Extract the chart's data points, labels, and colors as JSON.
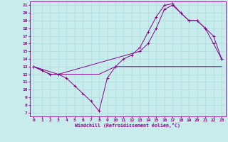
{
  "xlabel": "Windchill (Refroidissement éolien,°C)",
  "xlim": [
    -0.5,
    23.5
  ],
  "ylim": [
    6.5,
    21.5
  ],
  "yticks": [
    7,
    8,
    9,
    10,
    11,
    12,
    13,
    14,
    15,
    16,
    17,
    18,
    19,
    20,
    21
  ],
  "xticks": [
    0,
    1,
    2,
    3,
    4,
    5,
    6,
    7,
    8,
    9,
    10,
    11,
    12,
    13,
    14,
    15,
    16,
    17,
    18,
    19,
    20,
    21,
    22,
    23
  ],
  "bg_color": "#c8ecec",
  "line_color": "#880088",
  "grid_color": "#aadddd",
  "series1_x": [
    0,
    1,
    2,
    3,
    4,
    5,
    6,
    7,
    8
  ],
  "series1_y": [
    13,
    12.5,
    12,
    12,
    11.5,
    10.5,
    9.5,
    8.5,
    7.2
  ],
  "series2_x": [
    8,
    9,
    10,
    11,
    12,
    13,
    14,
    15,
    16,
    17,
    18,
    19,
    20,
    21,
    22,
    23
  ],
  "series2_y": [
    7.2,
    11.5,
    13,
    14,
    14.5,
    15.5,
    17.5,
    19.5,
    21,
    21.2,
    20,
    19,
    19,
    18,
    16,
    14
  ],
  "series3_x": [
    0,
    1,
    2,
    3,
    4,
    5,
    6,
    7,
    8,
    9,
    10,
    11,
    12,
    13,
    14,
    15,
    16,
    17,
    18,
    19,
    20,
    21,
    22,
    23
  ],
  "series3_y": [
    13,
    12.5,
    12,
    12,
    12,
    12,
    12,
    12,
    12,
    12.5,
    13,
    13,
    13,
    13,
    13,
    13,
    13,
    13,
    13,
    13,
    13,
    13,
    13,
    13
  ],
  "series4_x": [
    0,
    3,
    13,
    14,
    15,
    16,
    17,
    18,
    19,
    20,
    21,
    22,
    23
  ],
  "series4_y": [
    13,
    12,
    15,
    16,
    18,
    20.5,
    21,
    20,
    19,
    19,
    18,
    17,
    14
  ]
}
